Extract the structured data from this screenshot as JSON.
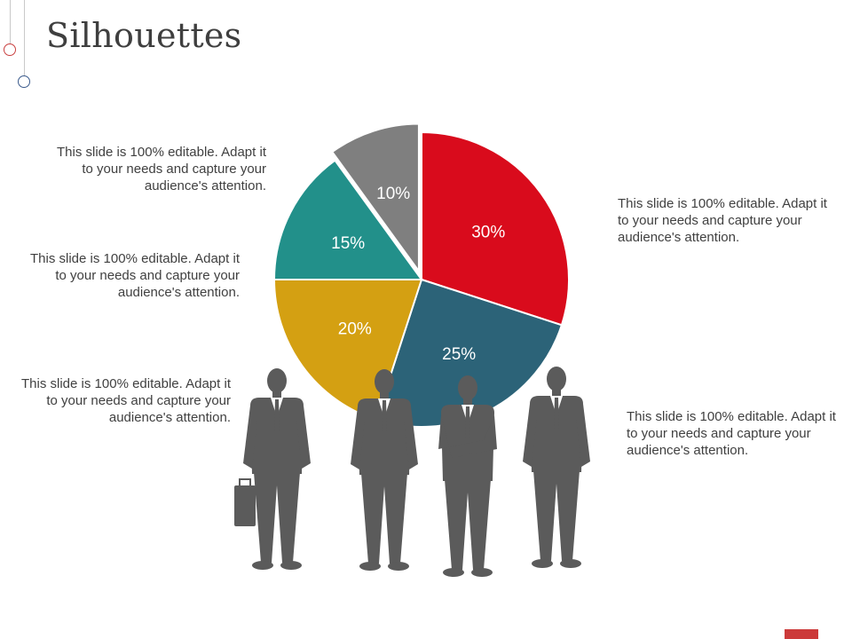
{
  "slide": {
    "title": "Silhouettes",
    "colors": {
      "title_text": "#3f3f3f",
      "body_text": "#404040",
      "deco_red": "#c94040",
      "deco_blue": "#3a5a8c",
      "silhouette": "#5b5b5b",
      "footer_mark": "#cc3a3a"
    }
  },
  "chart_data": {
    "type": "pie",
    "slices": [
      {
        "label": "30%",
        "value": 30,
        "color": "#d90b1c",
        "exploded": false
      },
      {
        "label": "25%",
        "value": 25,
        "color": "#2c6378",
        "exploded": false
      },
      {
        "label": "20%",
        "value": 20,
        "color": "#d4a012",
        "exploded": false
      },
      {
        "label": "15%",
        "value": 15,
        "color": "#22908a",
        "exploded": false
      },
      {
        "label": "10%",
        "value": 10,
        "color": "#7f7f7f",
        "exploded": true
      }
    ]
  },
  "blurbs": [
    {
      "id": "top-left",
      "text": "This slide is 100% editable. Adapt it to your needs and capture your audience's attention."
    },
    {
      "id": "middle-left",
      "text": "This slide is 100% editable. Adapt it to your needs and capture your audience's attention."
    },
    {
      "id": "bottom-left",
      "text": "This slide is 100% editable. Adapt it to your needs and capture your audience's attention."
    },
    {
      "id": "top-right",
      "text": "This slide is 100% editable. Adapt it to your needs and capture your audience's attention."
    },
    {
      "id": "bottom-right",
      "text": "This slide is 100% editable. Adapt it to your needs and capture your audience's attention."
    }
  ],
  "people": [
    {
      "name": "businessman-with-briefcase"
    },
    {
      "name": "businessman-hands-in-pockets"
    },
    {
      "name": "businessman-arms-crossed"
    },
    {
      "name": "businessman-standing"
    }
  ]
}
